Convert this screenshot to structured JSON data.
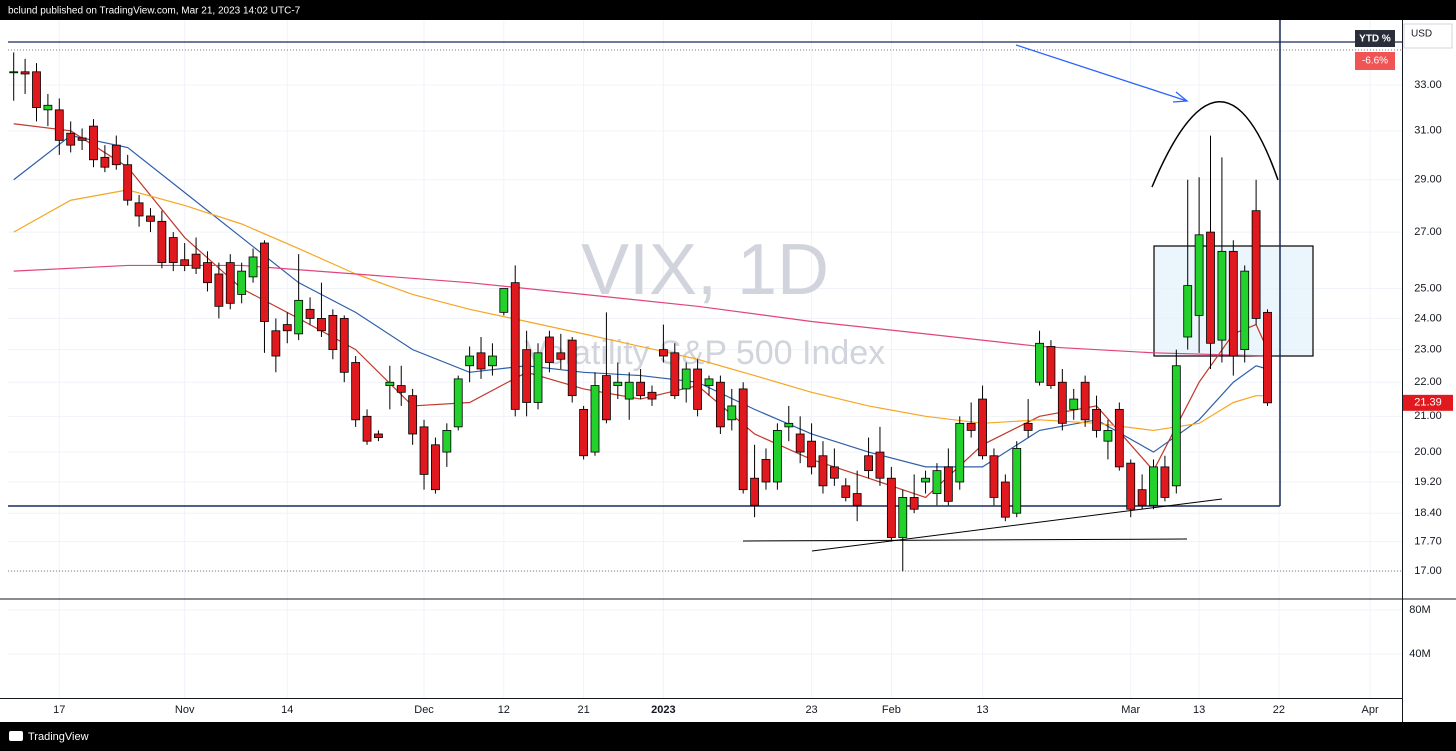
{
  "header": {
    "publisher": "bclund published on TradingView.com, Mar 21, 2023 14:02 UTC-7"
  },
  "footer": {
    "brand": "TradingView"
  },
  "watermark": {
    "symbol": "VIX, 1D",
    "description": "Volatility S&P 500 Index"
  },
  "badges": {
    "ytd_title": "YTD %",
    "ytd_value": "-6.6%",
    "currency": "USD"
  },
  "chart_data": {
    "type": "candlestick",
    "log_scale": true,
    "grid": true,
    "up_color": "#22d12b",
    "down_color": "#e0191e",
    "xlim": [
      -0.5,
      121.8
    ],
    "xticks": [
      {
        "value": 4,
        "label": "17"
      },
      {
        "value": 15,
        "label": "Nov"
      },
      {
        "value": 24,
        "label": "14"
      },
      {
        "value": 36,
        "label": "Dec"
      },
      {
        "value": 43,
        "label": "12"
      },
      {
        "value": 50,
        "label": "21"
      },
      {
        "value": 57,
        "label": "2023"
      },
      {
        "value": 70,
        "label": "23"
      },
      {
        "value": 77,
        "label": "Feb"
      },
      {
        "value": 85,
        "label": "13"
      },
      {
        "value": 98,
        "label": "Mar"
      },
      {
        "value": 104,
        "label": "13"
      },
      {
        "value": 111,
        "label": "22"
      },
      {
        "value": 119,
        "label": "Apr"
      }
    ],
    "ylim": [
      16.39,
      36.06
    ],
    "yticks": [
      {
        "value": 33,
        "label": "33.00"
      },
      {
        "value": 31,
        "label": "31.00"
      },
      {
        "value": 29,
        "label": "29.00"
      },
      {
        "value": 27,
        "label": "27.00"
      },
      {
        "value": 25,
        "label": "25.00"
      },
      {
        "value": 24,
        "label": "24.00"
      },
      {
        "value": 23,
        "label": "23.00"
      },
      {
        "value": 22,
        "label": "22.00"
      },
      {
        "value": 21,
        "label": "21.00"
      },
      {
        "value": 20,
        "label": "20.00"
      },
      {
        "value": 19.2,
        "label": "19.20"
      },
      {
        "value": 18.4,
        "label": "18.40"
      },
      {
        "value": 17.7,
        "label": "17.70"
      },
      {
        "value": 17,
        "label": "17.00"
      }
    ],
    "volume_ylim": [
      0,
      89000000
    ],
    "volume_ticks": [
      {
        "value": 80000000,
        "label": "80M"
      },
      {
        "value": 40000000,
        "label": "40M"
      }
    ],
    "last_price": 21.39,
    "open": [
      33.6,
      33.6,
      33.6,
      31.9,
      31.9,
      30.9,
      30.7,
      31.2,
      29.9,
      30.4,
      29.6,
      28.1,
      27.6,
      27.4,
      26.8,
      26.0,
      26.2,
      25.9,
      25.5,
      25.9,
      24.8,
      25.4,
      26.6,
      23.6,
      23.8,
      23.5,
      24.3,
      24.0,
      24.1,
      24.0,
      22.6,
      21.0,
      20.5,
      21.9,
      21.9,
      21.6,
      20.7,
      20.2,
      20.0,
      20.7,
      22.5,
      22.9,
      22.5,
      24.2,
      25.2,
      23.0,
      21.4,
      23.4,
      22.9,
      23.3,
      21.2,
      20.0,
      22.2,
      21.9,
      21.5,
      22.0,
      21.7,
      23.0,
      22.9,
      21.8,
      22.4,
      21.9,
      22.0,
      20.9,
      21.8,
      19.3,
      19.8,
      19.2,
      20.7,
      20.5,
      20.3,
      19.9,
      19.6,
      19.1,
      18.9,
      19.9,
      20.0,
      19.3,
      17.8,
      18.8,
      19.2,
      18.9,
      19.6,
      19.2,
      20.8,
      21.5,
      19.9,
      19.2,
      18.4,
      20.8,
      22.0,
      23.1,
      22.0,
      21.2,
      22.0,
      21.2,
      20.3,
      21.2,
      19.7,
      19.0,
      18.6,
      19.6,
      19.1,
      23.4,
      24.1,
      27.0,
      23.3,
      26.3,
      23.0,
      27.8,
      24.2
    ],
    "high": [
      34.5,
      34.2,
      34.0,
      32.6,
      32.4,
      31.4,
      31.1,
      31.5,
      30.4,
      30.8,
      30.0,
      28.4,
      27.9,
      27.8,
      27.0,
      26.6,
      26.8,
      26.3,
      25.9,
      26.2,
      25.9,
      26.4,
      26.7,
      24.0,
      24.2,
      26.2,
      24.7,
      25.2,
      24.3,
      24.1,
      22.8,
      21.2,
      20.6,
      22.5,
      22.5,
      21.8,
      20.9,
      20.4,
      20.8,
      22.2,
      23.1,
      23.4,
      23.2,
      25.0,
      25.8,
      23.6,
      23.2,
      23.6,
      23.5,
      23.4,
      21.3,
      22.3,
      24.2,
      22.6,
      22.3,
      22.4,
      21.9,
      23.8,
      23.2,
      22.6,
      22.7,
      22.2,
      22.2,
      21.8,
      22.0,
      20.2,
      20.1,
      20.8,
      21.3,
      21.0,
      20.8,
      20.3,
      20.1,
      19.3,
      19.5,
      20.4,
      20.7,
      19.6,
      19.0,
      19.4,
      19.5,
      19.7,
      20.1,
      21.0,
      21.4,
      21.9,
      20.1,
      19.4,
      20.3,
      21.5,
      23.6,
      23.3,
      22.4,
      21.8,
      22.2,
      21.6,
      20.9,
      21.4,
      19.8,
      19.4,
      19.8,
      19.9,
      23.0,
      29.0,
      29.1,
      30.8,
      29.9,
      26.7,
      25.8,
      29.0,
      24.3
    ],
    "low": [
      32.3,
      32.6,
      31.4,
      31.2,
      30.0,
      30.1,
      30.2,
      29.5,
      29.3,
      29.4,
      28.0,
      27.2,
      27.0,
      25.7,
      25.6,
      25.6,
      25.5,
      24.9,
      24.0,
      24.3,
      24.5,
      25.2,
      22.9,
      22.3,
      23.2,
      23.3,
      23.8,
      23.4,
      22.7,
      22.0,
      20.7,
      20.2,
      20.3,
      21.2,
      21.3,
      20.2,
      19.0,
      18.9,
      19.6,
      20.6,
      22.0,
      22.1,
      22.2,
      24.1,
      21.0,
      21.0,
      21.2,
      22.3,
      22.4,
      21.4,
      19.8,
      19.9,
      20.8,
      21.5,
      20.9,
      21.5,
      21.3,
      22.6,
      21.5,
      21.4,
      21.0,
      21.6,
      20.5,
      20.6,
      18.9,
      18.3,
      19.0,
      19.0,
      20.3,
      19.7,
      19.4,
      18.9,
      19.1,
      18.7,
      18.2,
      19.3,
      19.1,
      17.7,
      17.0,
      18.4,
      18.9,
      18.6,
      18.6,
      19.0,
      20.4,
      19.8,
      18.6,
      18.2,
      18.3,
      20.4,
      21.9,
      21.8,
      20.6,
      20.9,
      20.7,
      20.4,
      19.8,
      19.5,
      18.3,
      18.5,
      18.5,
      18.7,
      18.9,
      23.0,
      22.9,
      22.4,
      22.6,
      22.2,
      22.6,
      23.8,
      21.3
    ],
    "close": [
      33.6,
      33.5,
      32.0,
      32.1,
      30.6,
      30.4,
      30.6,
      29.8,
      29.5,
      29.6,
      28.2,
      27.6,
      27.4,
      25.9,
      25.9,
      25.8,
      25.7,
      25.2,
      24.4,
      24.5,
      25.6,
      26.1,
      23.9,
      22.8,
      23.6,
      24.6,
      24.0,
      23.6,
      23.0,
      22.3,
      20.9,
      20.3,
      20.4,
      22.0,
      21.7,
      20.5,
      19.4,
      19.0,
      20.6,
      22.1,
      22.8,
      22.4,
      22.8,
      25.0,
      21.2,
      21.4,
      22.9,
      22.6,
      22.7,
      21.6,
      19.9,
      21.9,
      20.9,
      22.0,
      22.0,
      21.6,
      21.5,
      22.8,
      21.6,
      22.4,
      21.2,
      22.1,
      20.7,
      21.3,
      19.0,
      18.6,
      19.2,
      20.6,
      20.8,
      20.0,
      19.6,
      19.1,
      19.3,
      18.8,
      18.6,
      19.5,
      19.3,
      17.8,
      18.8,
      18.5,
      19.3,
      19.5,
      18.7,
      20.8,
      20.6,
      19.9,
      18.8,
      18.3,
      20.1,
      20.6,
      23.2,
      21.9,
      20.8,
      21.5,
      20.9,
      20.6,
      20.6,
      19.6,
      18.5,
      18.6,
      19.6,
      18.8,
      22.5,
      25.1,
      26.9,
      23.2,
      26.3,
      22.8,
      25.6,
      24.0,
      21.39
    ],
    "series": [
      {
        "color": "#c0392b",
        "x": [
          0,
          5,
          10,
          15,
          20,
          25,
          30,
          35,
          40,
          45,
          50,
          55,
          60,
          65,
          70,
          75,
          80,
          85,
          90,
          95,
          100,
          104,
          107,
          109,
          110
        ],
        "values": [
          31.3,
          31.0,
          29.5,
          26.8,
          25.0,
          24.0,
          23.0,
          21.3,
          21.4,
          22.3,
          21.8,
          21.5,
          21.9,
          20.5,
          19.8,
          19.3,
          18.8,
          20.2,
          21.0,
          21.3,
          19.5,
          22.0,
          23.5,
          23.8,
          23.0
        ]
      },
      {
        "color": "#2f5fa8",
        "x": [
          0,
          5,
          10,
          15,
          20,
          25,
          30,
          35,
          40,
          45,
          50,
          55,
          60,
          65,
          70,
          75,
          80,
          85,
          90,
          95,
          100,
          104,
          107,
          109,
          110
        ],
        "values": [
          29.0,
          30.8,
          30.3,
          28.5,
          26.8,
          25.2,
          24.2,
          23.0,
          22.3,
          22.5,
          22.3,
          22.2,
          22.0,
          21.2,
          20.5,
          20.0,
          19.6,
          19.6,
          20.6,
          20.9,
          20.0,
          20.9,
          22.0,
          22.5,
          22.4
        ]
      },
      {
        "color": "#f5a623",
        "x": [
          0,
          5,
          10,
          15,
          20,
          25,
          30,
          35,
          40,
          45,
          50,
          55,
          60,
          65,
          70,
          75,
          80,
          85,
          90,
          95,
          100,
          104,
          107,
          109,
          110
        ],
        "values": [
          27.0,
          28.2,
          28.6,
          28.0,
          27.3,
          26.4,
          25.5,
          24.8,
          24.3,
          23.9,
          23.5,
          23.1,
          22.7,
          22.2,
          21.7,
          21.3,
          21.0,
          20.8,
          20.9,
          20.8,
          20.6,
          20.8,
          21.4,
          21.6,
          21.6
        ]
      },
      {
        "color": "#e0457b",
        "x": [
          0,
          10,
          20,
          30,
          40,
          50,
          60,
          70,
          80,
          90,
          100,
          110
        ],
        "values": [
          25.6,
          25.8,
          25.8,
          25.5,
          25.2,
          24.8,
          24.4,
          23.9,
          23.5,
          23.1,
          22.9,
          22.8
        ]
      }
    ]
  }
}
